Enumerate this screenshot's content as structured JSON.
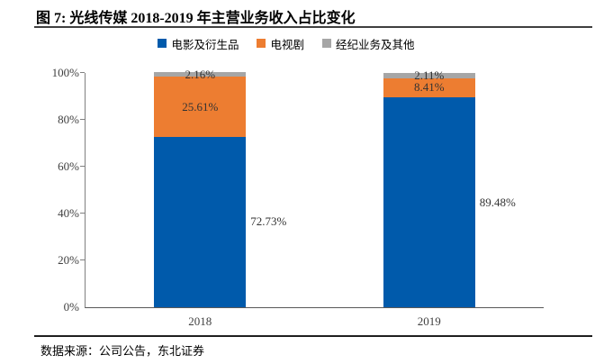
{
  "page": {
    "title": "图 7: 光线传媒 2018-2019 年主营业务收入占比变化",
    "footer": "数据来源：公司公告，东北证券"
  },
  "chart_data": {
    "type": "bar",
    "subtype": "stacked-100-percent",
    "categories": [
      "2018",
      "2019"
    ],
    "series": [
      {
        "name": "电影及衍生品",
        "color": "#005AAB",
        "values": [
          72.73,
          89.48
        ],
        "labels": [
          "72.73%",
          "89.48%"
        ],
        "label_placement": "outside-right"
      },
      {
        "name": "电视剧",
        "color": "#ED7D31",
        "values": [
          25.61,
          8.41
        ],
        "labels": [
          "25.61%",
          "8.41%"
        ],
        "label_placement": "inside"
      },
      {
        "name": "经纪业务及其他",
        "color": "#A6A6A6",
        "values": [
          2.16,
          2.11
        ],
        "labels": [
          "2.16%",
          "2.11%"
        ],
        "label_placement": "inside"
      }
    ],
    "y_ticks": [
      "0%",
      "20%",
      "40%",
      "60%",
      "80%",
      "100%"
    ],
    "ylim": [
      0,
      100
    ],
    "grid": false,
    "legend_position": "top",
    "axis_color": "#808080",
    "label_color": "#333333"
  }
}
